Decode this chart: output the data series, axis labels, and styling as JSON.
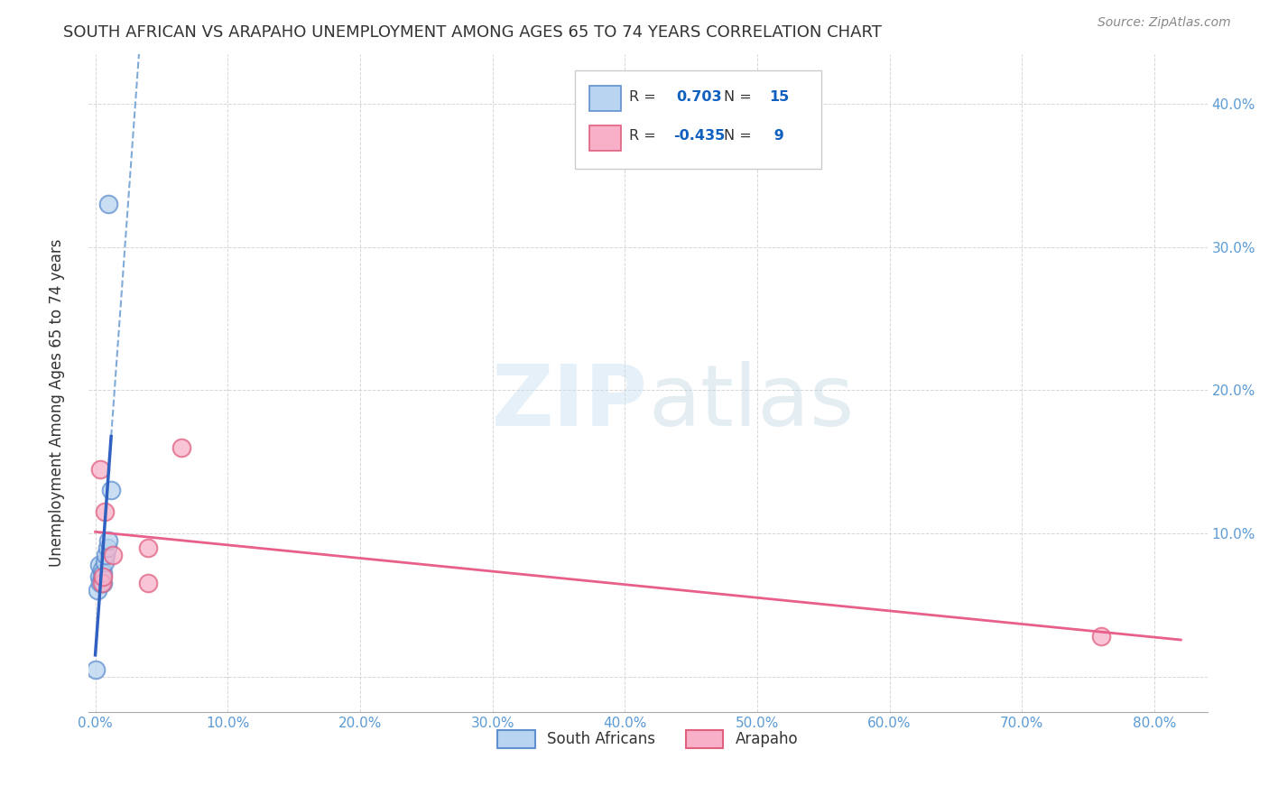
{
  "title": "SOUTH AFRICAN VS ARAPAHO UNEMPLOYMENT AMONG AGES 65 TO 74 YEARS CORRELATION CHART",
  "source": "Source: ZipAtlas.com",
  "ylabel": "Unemployment Among Ages 65 to 74 years",
  "xlim": [
    -0.005,
    0.84
  ],
  "ylim": [
    -0.025,
    0.435
  ],
  "xticks": [
    0.0,
    0.1,
    0.2,
    0.3,
    0.4,
    0.5,
    0.6,
    0.7,
    0.8
  ],
  "yticks": [
    0.0,
    0.1,
    0.2,
    0.3,
    0.4
  ],
  "xtick_labels": [
    "0.0%",
    "10.0%",
    "20.0%",
    "30.0%",
    "40.0%",
    "50.0%",
    "60.0%",
    "70.0%",
    "80.0%"
  ],
  "ytick_labels": [
    "",
    "10.0%",
    "20.0%",
    "30.0%",
    "40.0%"
  ],
  "blue_scatter_x": [
    0.0,
    0.002,
    0.003,
    0.003,
    0.004,
    0.005,
    0.005,
    0.006,
    0.006,
    0.007,
    0.008,
    0.009,
    0.01,
    0.012,
    0.01
  ],
  "blue_scatter_y": [
    0.005,
    0.06,
    0.07,
    0.078,
    0.065,
    0.07,
    0.075,
    0.065,
    0.072,
    0.08,
    0.085,
    0.09,
    0.095,
    0.13,
    0.33
  ],
  "pink_scatter_x": [
    0.004,
    0.005,
    0.006,
    0.007,
    0.013,
    0.04,
    0.04,
    0.065,
    0.76
  ],
  "pink_scatter_y": [
    0.145,
    0.065,
    0.07,
    0.115,
    0.085,
    0.09,
    0.065,
    0.16,
    0.028
  ],
  "blue_R": 0.703,
  "blue_N": 15,
  "pink_R": -0.435,
  "pink_N": 9,
  "blue_solid_color": "#3060c0",
  "blue_dashed_color": "#80aad8",
  "pink_line_color": "#e8608a",
  "blue_scatter_face": "#b8d4f0",
  "blue_scatter_edge": "#6090d0",
  "pink_scatter_face": "#f8b0c8",
  "pink_scatter_edge": "#e06080",
  "watermark_color": "#daeaf8",
  "background_color": "#ffffff",
  "grid_color": "#cccccc",
  "tick_color": "#5b9bd5",
  "legend_text_color": "#333333",
  "legend_val_color": "#1060c0"
}
